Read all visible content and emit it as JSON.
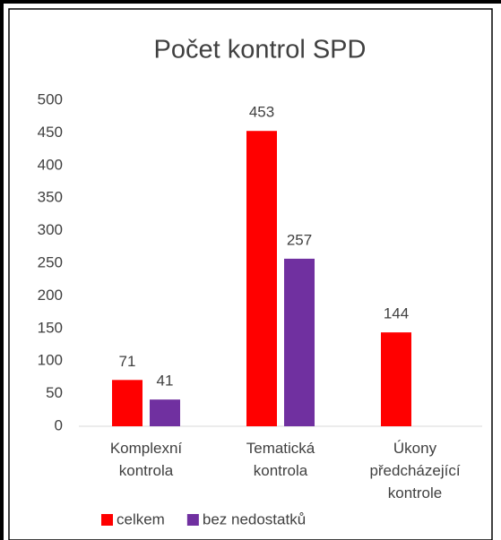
{
  "chart_data": {
    "type": "bar",
    "title": "Počet kontrol SPD",
    "categories": [
      "Komplexní kontrola",
      "Tematická kontrola",
      "Úkony předcházející kontrole"
    ],
    "series": [
      {
        "name": "celkem",
        "color": "#ff0000",
        "values": [
          71,
          453,
          144
        ]
      },
      {
        "name": "bez nedostatků",
        "color": "#7030a0",
        "values": [
          41,
          257,
          null
        ]
      }
    ],
    "ylim": [
      0,
      500
    ],
    "yticks": [
      0,
      50,
      100,
      150,
      200,
      250,
      300,
      350,
      400,
      450,
      500
    ],
    "grid": false,
    "legend": "bottom"
  }
}
